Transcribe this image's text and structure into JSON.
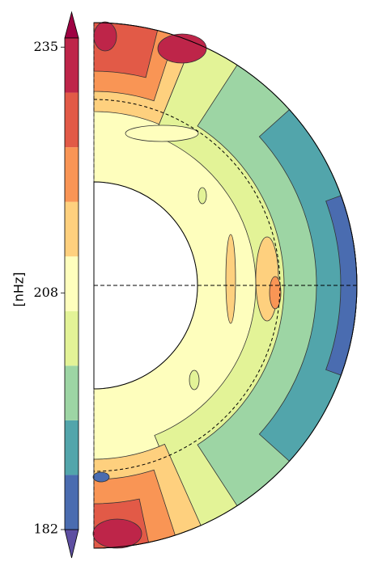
{
  "chart_data": {
    "type": "contourf",
    "colorbar": {
      "label": "[nHz]",
      "ylim": [
        182,
        236
      ],
      "yticks": [
        182,
        208,
        235
      ],
      "levels": [
        182,
        188,
        194,
        200,
        206,
        212,
        218,
        224,
        230,
        236
      ],
      "colors": [
        "#4a6cb0",
        "#52a5ab",
        "#9dd5a4",
        "#e3f397",
        "#fefebd",
        "#fed07e",
        "#f99555",
        "#e25a47",
        "#be2549"
      ],
      "extend_colors": {
        "min": "#5e4fa2",
        "max": "#9e0142"
      }
    }
  }
}
